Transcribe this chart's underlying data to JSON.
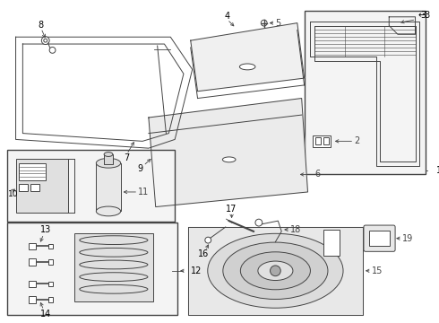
{
  "bg_color": "#ffffff",
  "line_color": "#444444",
  "label_color": "#000000",
  "fig_w": 4.9,
  "fig_h": 3.6,
  "dpi": 100
}
